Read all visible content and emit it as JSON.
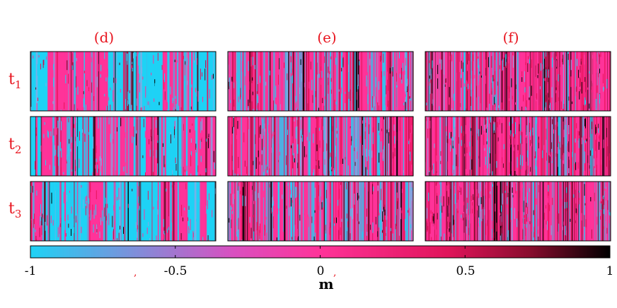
{
  "chart_data": {
    "type": "heatmap",
    "panels": {
      "columns": [
        "(d)",
        "(e)",
        "(f)"
      ],
      "rows": [
        {
          "base": "t",
          "sub": "1"
        },
        {
          "base": "t",
          "sub": "2"
        },
        {
          "base": "t",
          "sub": "3"
        }
      ]
    },
    "patterns": {
      "(d)": {
        "description_level": "coarse",
        "stripe_fraction_cyan": 0.5
      },
      "(e)": {
        "description_level": "medium",
        "stripe_fraction_cyan": 0.35
      },
      "(f)": {
        "description_level": "fine",
        "stripe_fraction_cyan": 0.2
      }
    },
    "colorbar": {
      "label": "m",
      "range": [
        -1,
        1
      ],
      "ticks": [
        -1,
        -0.5,
        0,
        0.5,
        1
      ],
      "tick_labels": [
        "-1",
        "-0.5",
        "0",
        "0.5",
        "1"
      ],
      "colors": [
        "#1ed2f5",
        "#ff3399",
        "#e8145a",
        "#000000"
      ]
    },
    "stray_marks": [
      ",",
      ","
    ]
  }
}
